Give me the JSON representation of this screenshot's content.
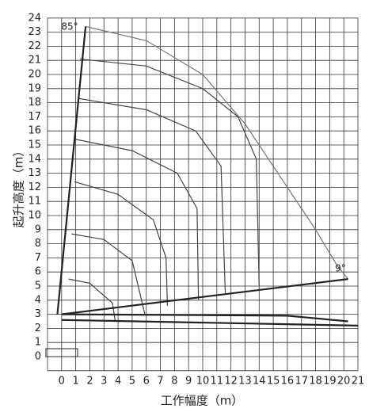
{
  "chart_data": {
    "type": "line",
    "x_label": "工作幅度（m）",
    "y_label": "起升高度（m）",
    "annotations": [
      "85°",
      "9°"
    ],
    "xlim": [
      -1,
      21
    ],
    "ylim": [
      -1,
      24
    ],
    "xticks": [
      0,
      1,
      2,
      3,
      4,
      5,
      6,
      7,
      8,
      9,
      10,
      11,
      12,
      13,
      14,
      15,
      16,
      17,
      18,
      19,
      20,
      21
    ],
    "yticks": [
      0,
      1,
      2,
      3,
      4,
      5,
      6,
      7,
      8,
      9,
      10,
      11,
      12,
      13,
      14,
      15,
      16,
      17,
      18,
      19,
      20,
      21,
      22,
      23,
      24
    ],
    "grid": true,
    "series": [
      {
        "color": "#777777",
        "x": [
          1.7,
          6,
          10,
          13,
          16,
          18,
          19.5,
          20.3
        ],
        "values": [
          23.4,
          22.4,
          20,
          16.5,
          12,
          9,
          6.5,
          5.5
        ]
      },
      {
        "color": "#444444",
        "x": [
          1.3,
          6,
          10,
          12.5,
          13.8,
          14
        ],
        "values": [
          21.1,
          20.6,
          19,
          17,
          14,
          5
        ]
      },
      {
        "color": "#444444",
        "x": [
          1.2,
          6,
          9.5,
          11.3,
          11.6
        ],
        "values": [
          18.3,
          17.5,
          16,
          13.5,
          4.5
        ]
      },
      {
        "color": "#444444",
        "x": [
          1,
          5,
          8.2,
          9.6,
          9.7
        ],
        "values": [
          15.4,
          14.6,
          13,
          10.5,
          4
        ]
      },
      {
        "color": "#444444",
        "x": [
          0.9,
          4,
          6.5,
          7.4,
          7.5
        ],
        "values": [
          12.4,
          11.5,
          9.7,
          7,
          3.6
        ]
      },
      {
        "color": "#444444",
        "x": [
          0.7,
          3,
          5,
          5.9
        ],
        "values": [
          8.7,
          8.3,
          6.8,
          3
        ]
      },
      {
        "color": "#444444",
        "x": [
          0.5,
          2,
          3.6,
          3.8
        ],
        "values": [
          5.5,
          5.2,
          3.8,
          2.5
        ]
      },
      {
        "color": "#222222",
        "x": [
          -0.3,
          1.7
        ],
        "values": [
          3,
          23.4
        ]
      },
      {
        "color": "#222222",
        "x": [
          0,
          20.3
        ],
        "values": [
          3,
          5.5
        ]
      },
      {
        "color": "#222222",
        "x": [
          0,
          16,
          20.3
        ],
        "values": [
          3,
          2.9,
          2.5
        ]
      },
      {
        "color": "#222222",
        "x": [
          0,
          21
        ],
        "values": [
          2.6,
          2.2
        ]
      }
    ]
  }
}
